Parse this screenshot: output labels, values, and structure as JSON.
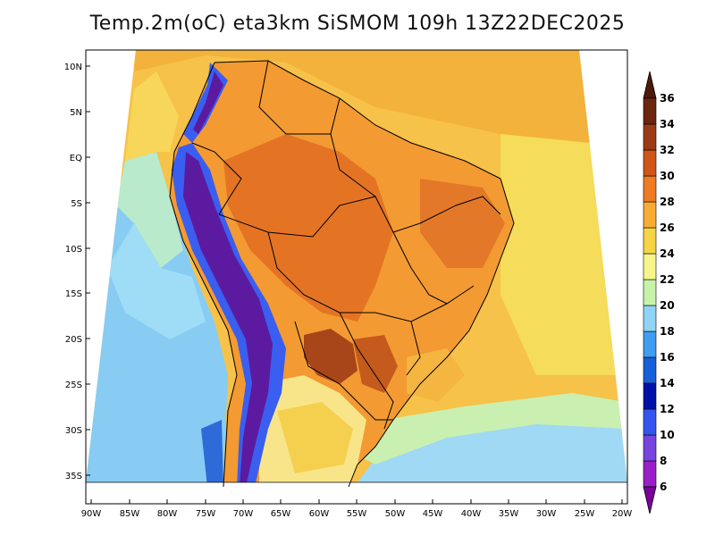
{
  "title": "Temp.2m(oC) eta3km SiSMOM 109h 13Z22DEC2025",
  "longitude_labels": [
    "90W",
    "85W",
    "80W",
    "75W",
    "70W",
    "65W",
    "60W",
    "55W",
    "50W",
    "45W",
    "40W",
    "35W",
    "30W",
    "25W",
    "20W"
  ],
  "latitude_labels": [
    "10N",
    "5N",
    "EQ",
    "5S",
    "10S",
    "15S",
    "20S",
    "25S",
    "30S",
    "35S"
  ],
  "colorbar": {
    "labels": [
      "6",
      "8",
      "10",
      "12",
      "14",
      "16",
      "18",
      "20",
      "22",
      "24",
      "26",
      "28",
      "30",
      "32",
      "34",
      "36"
    ],
    "colors": [
      "#7a009b",
      "#9b1fc8",
      "#7744e0",
      "#3355ee",
      "#0011aa",
      "#1560d8",
      "#3f9ef0",
      "#8fd4f7",
      "#c6f3a8",
      "#f7f58a",
      "#f5d545",
      "#f8ac33",
      "#ef7c22",
      "#cf5518",
      "#9a3b15",
      "#6b260d",
      "#4d1a08"
    ],
    "min_label": "6",
    "max_label": "36"
  },
  "map_colors": {
    "ocean_south": "#88ccf4",
    "ocean_mid": "#b9eacc",
    "ocean_north": "#f8d65a",
    "atlantic": "#f6c24a",
    "land_warm": "#f39a32",
    "land_hot": "#e47424",
    "land_hottest": "#a8461a",
    "andes_cold": "#5c1aa0",
    "andes_blue": "#3a5ef0",
    "south_mild": "#f8e58a",
    "border": "#000000"
  }
}
